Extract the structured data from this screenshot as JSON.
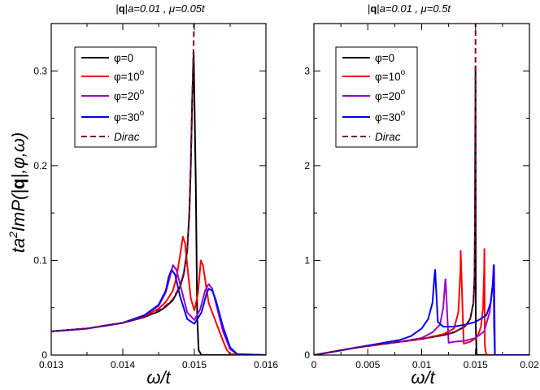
{
  "chart_data": [
    {
      "type": "line",
      "title": "|q|a=0.01 , μ=0.05t",
      "title_parts": {
        "q": "q",
        "rest": "a=0.01 , μ=0.05t"
      },
      "xlabel": "ω/t",
      "ylabel": "ta²ImP(|q|,φ,ω)",
      "xlim": [
        0.013,
        0.016
      ],
      "ylim": [
        0,
        0.35
      ],
      "xticks": [
        0.013,
        0.014,
        0.015,
        0.016
      ],
      "xtick_labels": [
        "0.013",
        "0.014",
        "0.015",
        "0.016"
      ],
      "yticks": [
        0,
        0.1,
        0.2,
        0.3
      ],
      "ytick_labels": [
        "0",
        "0.1",
        "0.2",
        "0.3"
      ],
      "legend": [
        "φ=0",
        "φ=10",
        "φ=20",
        "φ=30",
        "Dirac"
      ],
      "series": [
        {
          "name": "φ=0",
          "color": "#000000",
          "dash": false,
          "x": [
            0.013,
            0.0135,
            0.014,
            0.0143,
            0.0145,
            0.0146,
            0.0147,
            0.0148,
            0.01485,
            0.0149,
            0.01493,
            0.01495,
            0.01497,
            0.01499,
            0.01502,
            0.01504,
            0.01506,
            0.0151,
            0.016
          ],
          "y": [
            0.025,
            0.028,
            0.034,
            0.04,
            0.046,
            0.051,
            0.058,
            0.072,
            0.085,
            0.11,
            0.15,
            0.2,
            0.27,
            0.32,
            0.18,
            0.04,
            0.005,
            0,
            0
          ]
        },
        {
          "name": "φ=10",
          "color": "#ff0000",
          "dash": false,
          "x": [
            0.013,
            0.0135,
            0.014,
            0.0143,
            0.0145,
            0.0146,
            0.0147,
            0.01475,
            0.0148,
            0.01484,
            0.01487,
            0.0149,
            0.01495,
            0.015,
            0.01505,
            0.01509,
            0.01512,
            0.01516,
            0.0152,
            0.0153,
            0.0154,
            0.01545,
            0.0155,
            0.016
          ],
          "y": [
            0.025,
            0.028,
            0.034,
            0.041,
            0.049,
            0.056,
            0.068,
            0.082,
            0.105,
            0.125,
            0.118,
            0.095,
            0.06,
            0.047,
            0.065,
            0.1,
            0.095,
            0.075,
            0.055,
            0.035,
            0.015,
            0.006,
            0.001,
            0
          ]
        },
        {
          "name": "φ=20",
          "color": "#a000c8",
          "dash": false,
          "x": [
            0.013,
            0.0135,
            0.014,
            0.0143,
            0.0145,
            0.0146,
            0.01465,
            0.0147,
            0.01475,
            0.0148,
            0.0149,
            0.015,
            0.01508,
            0.01515,
            0.0152,
            0.01525,
            0.0153,
            0.0154,
            0.0155,
            0.0156,
            0.016
          ],
          "y": [
            0.025,
            0.028,
            0.034,
            0.042,
            0.052,
            0.066,
            0.08,
            0.095,
            0.09,
            0.075,
            0.045,
            0.037,
            0.048,
            0.068,
            0.075,
            0.07,
            0.055,
            0.025,
            0.006,
            0.001,
            0
          ]
        },
        {
          "name": "φ=30",
          "color": "#0000ff",
          "dash": false,
          "x": [
            0.013,
            0.0135,
            0.014,
            0.0143,
            0.0145,
            0.0146,
            0.01464,
            0.01468,
            0.01473,
            0.0148,
            0.0149,
            0.015,
            0.0151,
            0.01517,
            0.0152,
            0.01525,
            0.0153,
            0.0154,
            0.0155,
            0.0156,
            0.016
          ],
          "y": [
            0.025,
            0.028,
            0.034,
            0.042,
            0.053,
            0.068,
            0.082,
            0.09,
            0.085,
            0.062,
            0.038,
            0.033,
            0.045,
            0.065,
            0.07,
            0.068,
            0.058,
            0.03,
            0.008,
            0.001,
            0
          ]
        },
        {
          "name": "Dirac",
          "color": "#800040",
          "dash": true,
          "x": [
            0.013,
            0.0135,
            0.014,
            0.0143,
            0.0145,
            0.0146,
            0.0147,
            0.0148,
            0.01485,
            0.0149,
            0.01493,
            0.01495,
            0.01497,
            0.01499,
            0.014995,
            0.015
          ],
          "y": [
            0.025,
            0.028,
            0.034,
            0.04,
            0.047,
            0.052,
            0.059,
            0.073,
            0.086,
            0.11,
            0.15,
            0.2,
            0.27,
            0.33,
            0.35,
            0.35
          ]
        }
      ]
    },
    {
      "type": "line",
      "title": "|q|a=0.01 , μ=0.5t",
      "title_parts": {
        "q": "q",
        "rest": "a=0.01 , μ=0.5t"
      },
      "xlabel": "ω/t",
      "ylabel": "",
      "xlim": [
        0,
        0.02
      ],
      "ylim": [
        0,
        3.5
      ],
      "xticks": [
        0,
        0.005,
        0.01,
        0.015,
        0.02
      ],
      "xtick_labels": [
        "0",
        "0.005",
        "0.01",
        "0.015",
        "0.02"
      ],
      "yticks": [
        0,
        1,
        2,
        3
      ],
      "ytick_labels": [
        "0",
        "1",
        "2",
        "3"
      ],
      "legend": [
        "φ=0",
        "φ=10",
        "φ=20",
        "φ=30",
        "Dirac"
      ],
      "series": [
        {
          "name": "φ=0",
          "color": "#000000",
          "dash": false,
          "x": [
            0,
            0.002,
            0.004,
            0.006,
            0.008,
            0.01,
            0.012,
            0.013,
            0.014,
            0.0145,
            0.0148,
            0.0149,
            0.01495,
            0.01498,
            0.015,
            0.01502,
            0.0151,
            0.02
          ],
          "y": [
            0,
            0.04,
            0.08,
            0.11,
            0.14,
            0.17,
            0.21,
            0.24,
            0.3,
            0.38,
            0.55,
            0.8,
            1.4,
            2.5,
            3.05,
            0.3,
            0,
            0
          ]
        },
        {
          "name": "φ=10",
          "color": "#ff0000",
          "dash": false,
          "x": [
            0,
            0.002,
            0.004,
            0.006,
            0.008,
            0.01,
            0.012,
            0.013,
            0.0134,
            0.0136,
            0.01362,
            0.0139,
            0.0142,
            0.0145,
            0.0148,
            0.0152,
            0.0155,
            0.0157,
            0.0158,
            0.01582,
            0.01586,
            0.016,
            0.02
          ],
          "y": [
            0,
            0.04,
            0.08,
            0.11,
            0.14,
            0.17,
            0.22,
            0.28,
            0.45,
            0.9,
            1.1,
            0.12,
            0.13,
            0.14,
            0.16,
            0.2,
            0.3,
            0.5,
            0.9,
            1.12,
            0.1,
            0,
            0
          ]
        },
        {
          "name": "φ=20",
          "color": "#a000c8",
          "dash": false,
          "x": [
            0,
            0.002,
            0.004,
            0.006,
            0.008,
            0.01,
            0.011,
            0.0117,
            0.012,
            0.0122,
            0.01222,
            0.0125,
            0.013,
            0.014,
            0.015,
            0.0158,
            0.0163,
            0.0166,
            0.01672,
            0.01676,
            0.0168,
            0.02
          ],
          "y": [
            0,
            0.04,
            0.08,
            0.11,
            0.14,
            0.18,
            0.24,
            0.32,
            0.5,
            0.8,
            0.8,
            0.13,
            0.14,
            0.15,
            0.18,
            0.25,
            0.45,
            0.75,
            0.95,
            0.5,
            0,
            0
          ]
        },
        {
          "name": "φ=30",
          "color": "#0000ff",
          "dash": false,
          "x": [
            0,
            0.002,
            0.004,
            0.006,
            0.008,
            0.009,
            0.01,
            0.0106,
            0.011,
            0.0112,
            0.01125,
            0.0115,
            0.012,
            0.013,
            0.014,
            0.015,
            0.016,
            0.0164,
            0.0166,
            0.01668,
            0.01672,
            0.0168,
            0.02
          ],
          "y": [
            0,
            0.04,
            0.08,
            0.12,
            0.16,
            0.2,
            0.28,
            0.38,
            0.55,
            0.85,
            0.9,
            0.35,
            0.3,
            0.3,
            0.32,
            0.35,
            0.42,
            0.55,
            0.75,
            0.95,
            0.3,
            0,
            0
          ]
        },
        {
          "name": "Dirac",
          "color": "#800040",
          "dash": true,
          "x": [
            0,
            0.002,
            0.004,
            0.006,
            0.008,
            0.01,
            0.012,
            0.013,
            0.014,
            0.0145,
            0.0148,
            0.0149,
            0.01495,
            0.01499,
            0.015
          ],
          "y": [
            0,
            0.04,
            0.08,
            0.11,
            0.14,
            0.17,
            0.21,
            0.24,
            0.3,
            0.38,
            0.55,
            0.8,
            1.4,
            3.0,
            3.5
          ]
        }
      ]
    }
  ]
}
